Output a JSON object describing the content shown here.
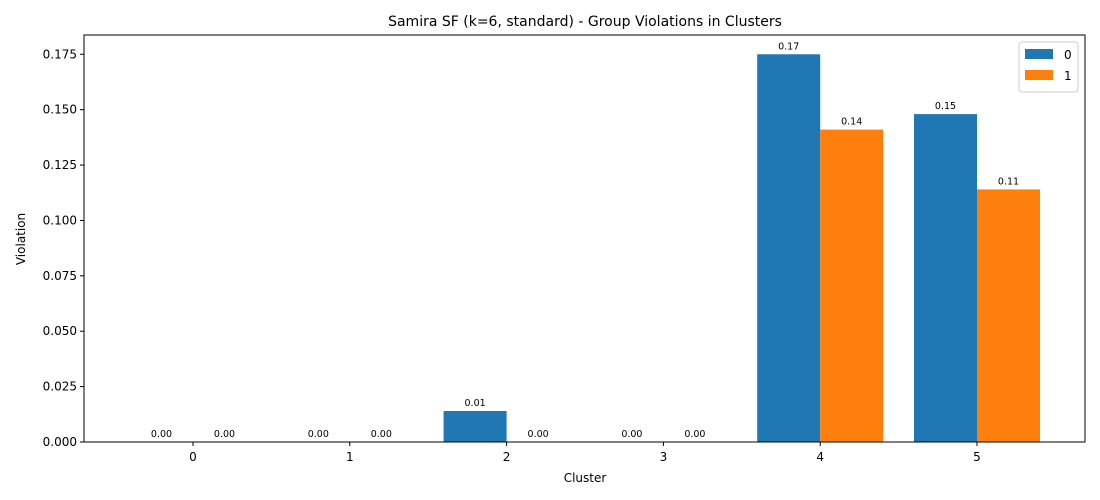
{
  "chart_data": {
    "type": "bar",
    "title": "Samira SF (k=6, standard) - Group Violations in Clusters",
    "xlabel": "Cluster",
    "ylabel": "Violation",
    "categories": [
      "0",
      "1",
      "2",
      "3",
      "4",
      "5"
    ],
    "series": [
      {
        "name": "0",
        "color": "#1f77b4",
        "values": [
          0.0,
          0.0,
          0.014,
          0.0,
          0.175,
          0.148
        ],
        "labels": [
          "0.00",
          "0.00",
          "0.01",
          "0.00",
          "0.17",
          "0.15"
        ]
      },
      {
        "name": "1",
        "color": "#ff7f0e",
        "values": [
          0.0,
          0.0,
          0.0,
          0.0,
          0.141,
          0.114
        ],
        "labels": [
          "0.00",
          "0.00",
          "0.00",
          "0.00",
          "0.14",
          "0.11"
        ]
      }
    ],
    "ylim": [
      0,
      0.1837
    ],
    "yticks": [
      "0.000",
      "0.025",
      "0.050",
      "0.075",
      "0.100",
      "0.125",
      "0.150",
      "0.175"
    ],
    "legend_position": "top-right",
    "grid": false
  }
}
